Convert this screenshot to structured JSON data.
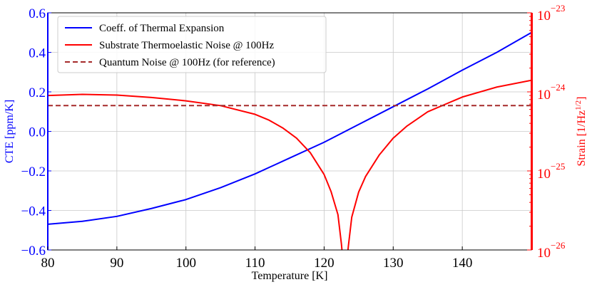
{
  "chart_data": {
    "type": "line",
    "xlabel": "Temperature [K]",
    "ylabel_left": "CTE [ppm/K]",
    "ylabel_right_base": "Strain [1/Hz",
    "ylabel_right_exp": "1/2",
    "ylabel_right_close": "]",
    "xlim": [
      80,
      150
    ],
    "ylim_left": [
      -0.6,
      0.6
    ],
    "ylim_right": [
      1e-26,
      1e-23
    ],
    "right_scale": "log",
    "grid": true,
    "legend_position": "top-left",
    "x_ticks": [
      "80",
      "90",
      "100",
      "110",
      "120",
      "130",
      "140"
    ],
    "y_left_ticks": [
      "0.6",
      "0.4",
      "0.2",
      "0.0",
      "−0.2",
      "−0.4",
      "−0.6"
    ],
    "y_right_ticks": [
      {
        "base": "10",
        "exp": "−23"
      },
      {
        "base": "10",
        "exp": "−24"
      },
      {
        "base": "10",
        "exp": "−25"
      },
      {
        "base": "10",
        "exp": "−26"
      }
    ],
    "series": [
      {
        "name": "Coeff. of Thermal Expansion",
        "color": "#0000ff",
        "style": "solid",
        "axis": "left",
        "x": [
          80,
          85,
          90,
          95,
          100,
          105,
          110,
          115,
          120,
          125,
          130,
          135,
          140,
          145,
          150
        ],
        "y": [
          -0.47,
          -0.455,
          -0.43,
          -0.39,
          -0.345,
          -0.285,
          -0.215,
          -0.135,
          -0.055,
          0.035,
          0.125,
          0.215,
          0.31,
          0.4,
          0.5
        ]
      },
      {
        "name": "Substrate Thermoelastic Noise @ 100Hz",
        "color": "#ff0000",
        "style": "solid",
        "axis": "right",
        "x": [
          80,
          85,
          90,
          95,
          100,
          105,
          110,
          112,
          114,
          116,
          118,
          120,
          121,
          122,
          122.5,
          123,
          123.5,
          124,
          125,
          126,
          128,
          130,
          132,
          135,
          140,
          145,
          150
        ],
        "y": [
          9e-25,
          9.3e-25,
          9.1e-25,
          8.5e-25,
          7.7e-25,
          6.7e-25,
          5.2e-25,
          4.4e-25,
          3.5e-25,
          2.6e-25,
          1.7e-25,
          9e-26,
          5.5e-26,
          2.8e-26,
          1.2e-26,
          4e-27,
          1.1e-26,
          2.6e-26,
          5.4e-26,
          8.5e-26,
          1.6e-25,
          2.6e-25,
          3.7e-25,
          5.6e-25,
          8.6e-25,
          1.15e-24,
          1.4e-24
        ]
      },
      {
        "name": "Quantum Noise @ 100Hz (for reference)",
        "color": "#a52a2a",
        "style": "dashed",
        "axis": "right",
        "x": [
          80,
          150
        ],
        "y": [
          6.7e-25,
          6.7e-25
        ]
      }
    ]
  }
}
